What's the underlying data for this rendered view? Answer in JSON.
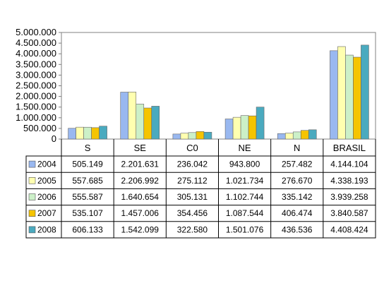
{
  "chart_data": {
    "type": "bar",
    "categories": [
      "S",
      "SE",
      "C0",
      "NE",
      "N",
      "BRASIL"
    ],
    "series": [
      {
        "name": "2004",
        "color": "#99b8f0",
        "values": [
          505149,
          2201631,
          236042,
          943800,
          257482,
          4144104
        ],
        "labels": [
          "505.149",
          "2.201.631",
          "236.042",
          "943.800",
          "257.482",
          "4.144.104"
        ]
      },
      {
        "name": "2005",
        "color": "#ffffb0",
        "values": [
          557685,
          2206992,
          275112,
          1021734,
          276670,
          4338193
        ],
        "labels": [
          "557.685",
          "2.206.992",
          "275.112",
          "1.021.734",
          "276.670",
          "4.338.193"
        ]
      },
      {
        "name": "2006",
        "color": "#ccf0c8",
        "values": [
          555587,
          1640654,
          305131,
          1102744,
          335142,
          3939258
        ],
        "labels": [
          "555.587",
          "1.640.654",
          "305.131",
          "1.102.744",
          "335.142",
          "3.939.258"
        ]
      },
      {
        "name": "2007",
        "color": "#f5c400",
        "values": [
          535107,
          1457006,
          354456,
          1087544,
          406474,
          3840587
        ],
        "labels": [
          "535.107",
          "1.457.006",
          "354.456",
          "1.087.544",
          "406.474",
          "3.840.587"
        ]
      },
      {
        "name": "2008",
        "color": "#4aaabf",
        "values": [
          606133,
          1542099,
          322580,
          1501076,
          436536,
          4408424
        ],
        "labels": [
          "606.133",
          "1.542.099",
          "322.580",
          "1.501.076",
          "436.536",
          "4.408.424"
        ]
      }
    ],
    "ylim": [
      0,
      5000000
    ],
    "yticks": [
      0,
      500000,
      1000000,
      1500000,
      2000000,
      2500000,
      3000000,
      3500000,
      4000000,
      4500000,
      5000000
    ],
    "ytick_labels": [
      "0",
      "500.000",
      "1.000.000",
      "1.500.000",
      "2.000.000",
      "2.500.000",
      "3.000.000",
      "3.500.000",
      "4.000.000",
      "4.500.000",
      "5.000.000"
    ],
    "grid": false,
    "legend": "data-table"
  }
}
